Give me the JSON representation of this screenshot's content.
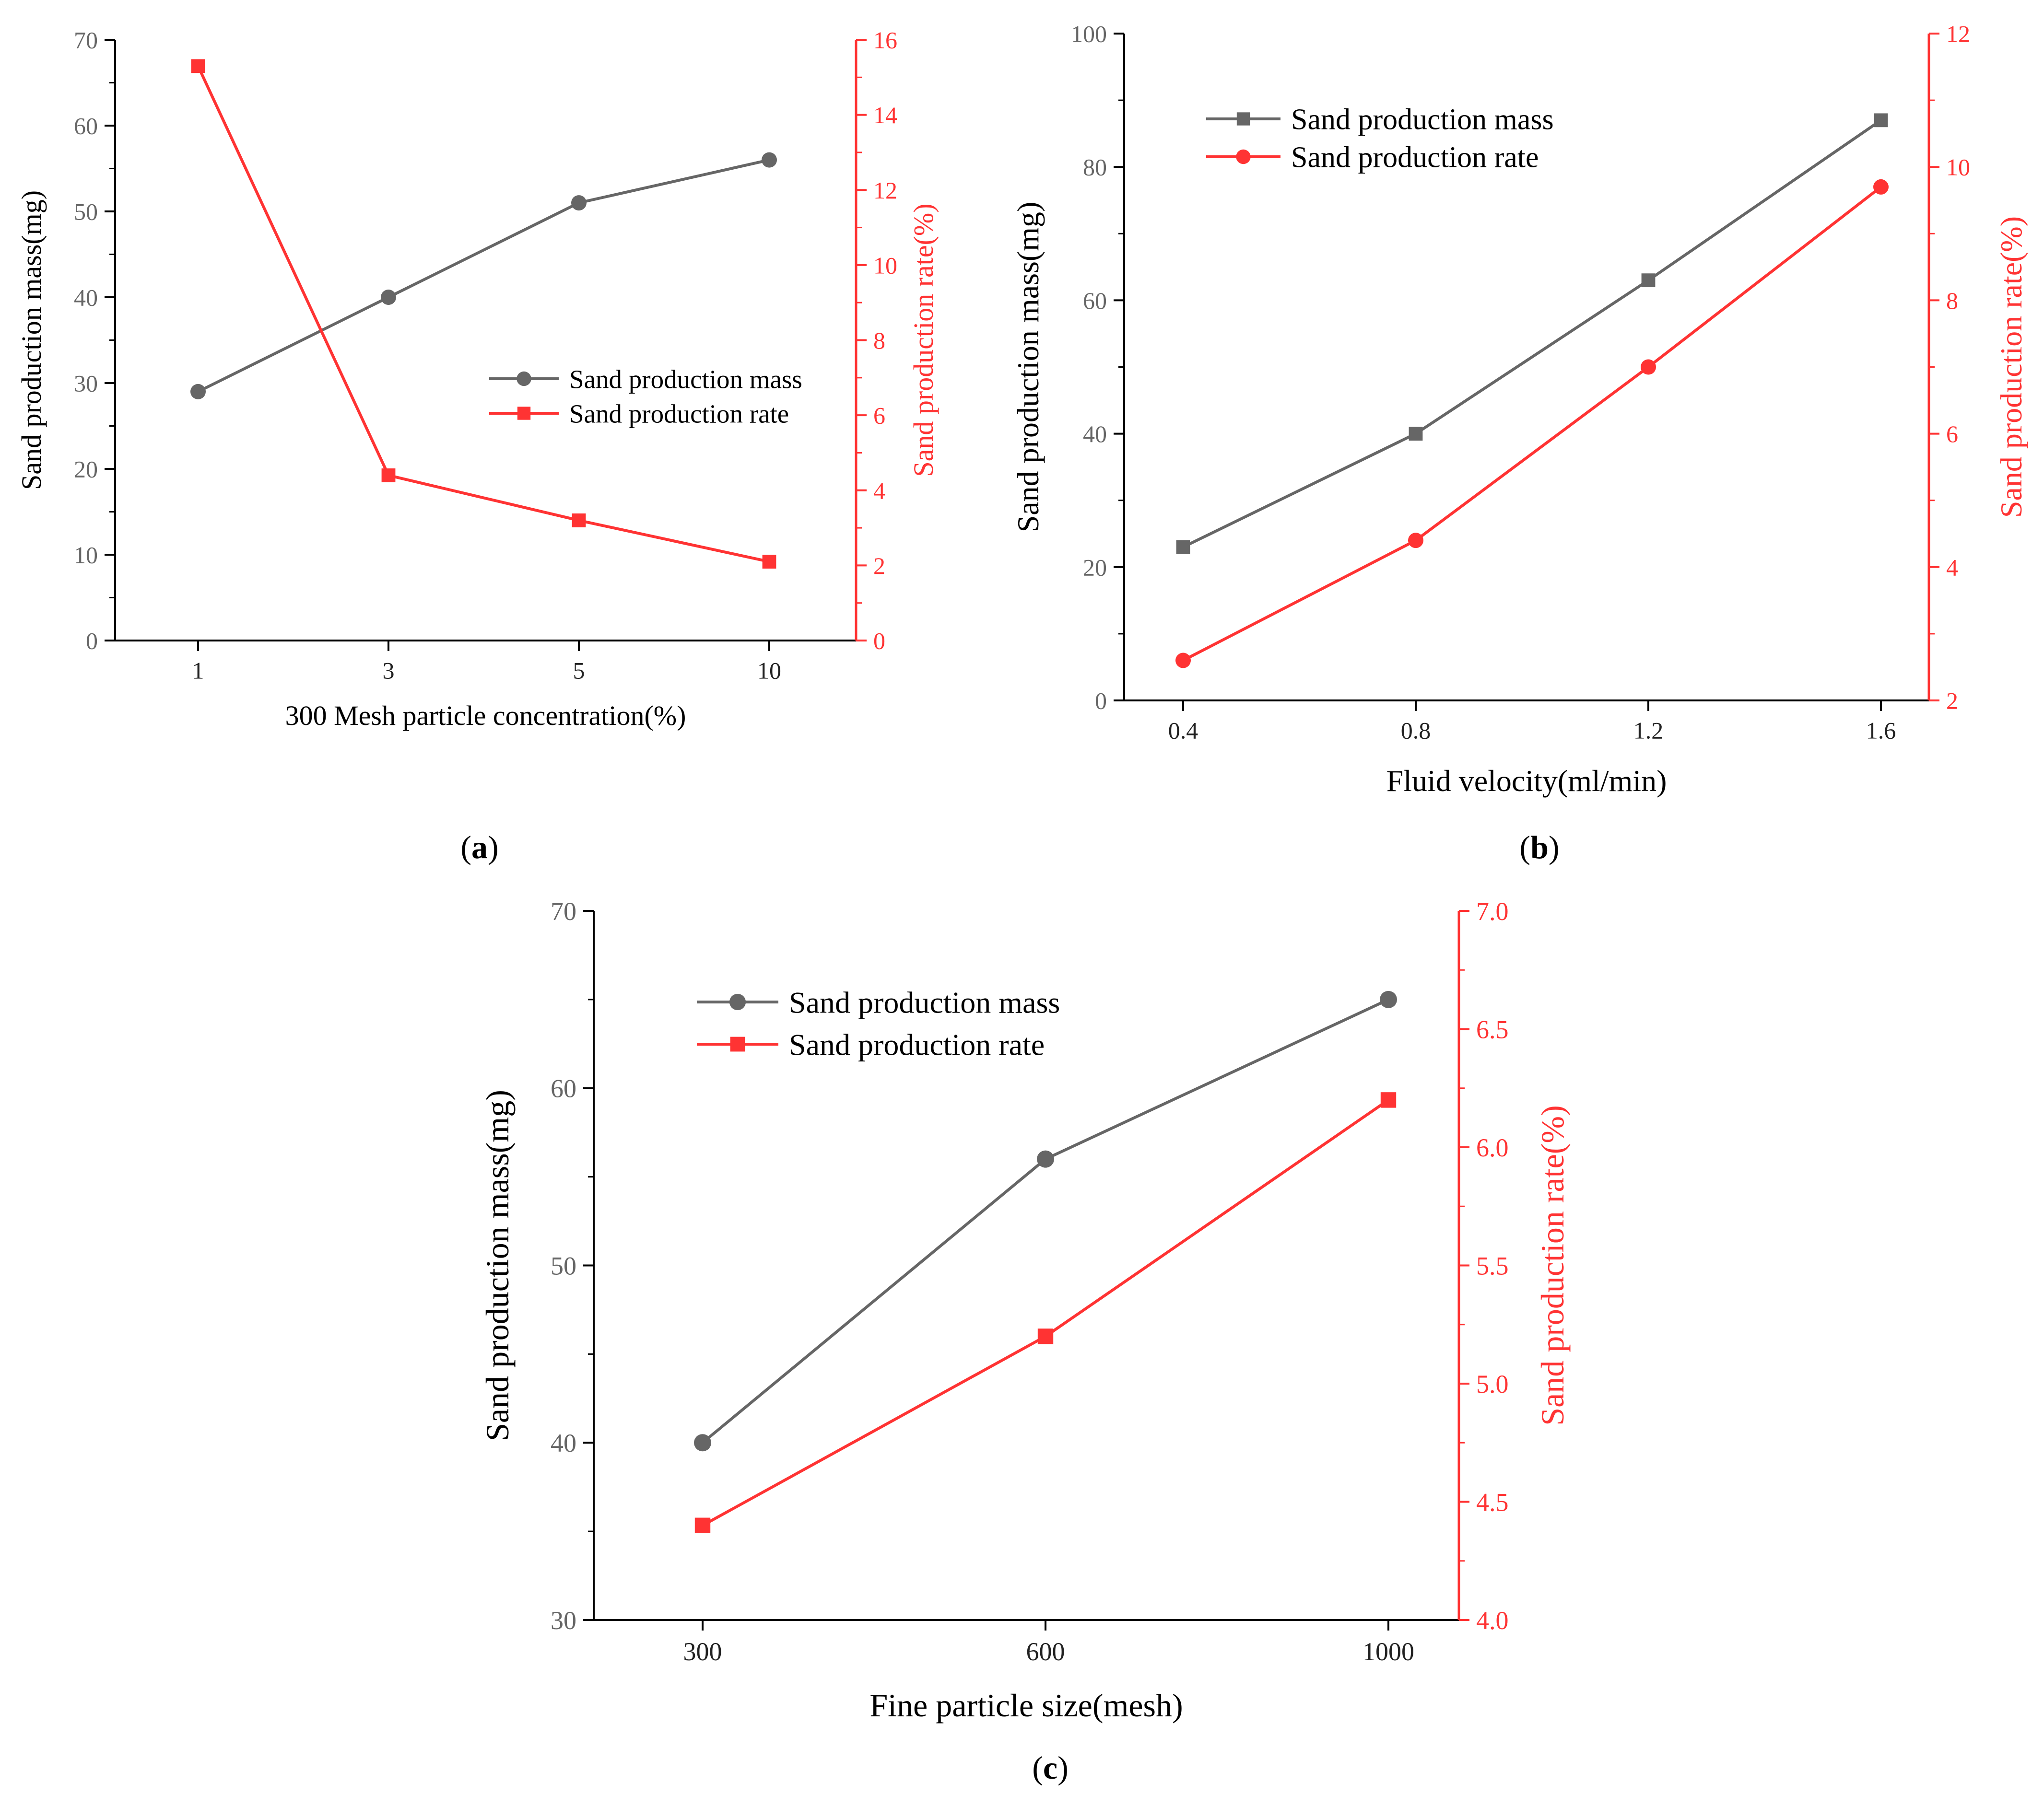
{
  "colors": {
    "mass": "#666666",
    "rate": "#ff3333",
    "axis": "#000000"
  },
  "chart_data": [
    {
      "id": "a",
      "panel_label": "a",
      "type": "line",
      "xlabel": "300 Mesh particle concentration(%)",
      "categories": [
        "1",
        "3",
        "5",
        "10"
      ],
      "y_left": {
        "label": "Sand production mass(mg)",
        "ylim": [
          0,
          70
        ],
        "ticks": [
          "0",
          "10",
          "20",
          "30",
          "40",
          "50",
          "60",
          "70"
        ]
      },
      "y_right": {
        "label": "Sand production rate(%)",
        "ylim": [
          0,
          16
        ],
        "ticks": [
          "0",
          "2",
          "4",
          "6",
          "8",
          "10",
          "12",
          "14",
          "16"
        ]
      },
      "series": [
        {
          "name": "Sand production mass",
          "axis": "left",
          "marker": "circle",
          "values": [
            29,
            40,
            51,
            56
          ]
        },
        {
          "name": "Sand production rate",
          "axis": "right",
          "marker": "square",
          "values": [
            15.3,
            4.4,
            3.2,
            2.1
          ]
        }
      ],
      "legend": "center-right",
      "grid": false
    },
    {
      "id": "b",
      "panel_label": "b",
      "type": "line",
      "xlabel": "Fluid velocity(ml/min)",
      "categories": [
        "0.4",
        "0.8",
        "1.2",
        "1.6"
      ],
      "y_left": {
        "label": "Sand production mass(mg)",
        "ylim": [
          0,
          100
        ],
        "ticks": [
          "0",
          "20",
          "40",
          "60",
          "80",
          "100"
        ]
      },
      "y_right": {
        "label": "Sand production rate(%)",
        "ylim": [
          2,
          12
        ],
        "ticks": [
          "2",
          "4",
          "6",
          "8",
          "10",
          "12"
        ]
      },
      "series": [
        {
          "name": "Sand production mass",
          "axis": "left",
          "marker": "square",
          "values": [
            23,
            40,
            63,
            87
          ]
        },
        {
          "name": "Sand production rate",
          "axis": "right",
          "marker": "circle",
          "values": [
            2.6,
            4.4,
            7.0,
            9.7
          ]
        }
      ],
      "legend": "top-left",
      "grid": false
    },
    {
      "id": "c",
      "panel_label": "c",
      "type": "line",
      "xlabel": "Fine particle size(mesh)",
      "categories": [
        "300",
        "600",
        "1000"
      ],
      "y_left": {
        "label": "Sand production mass(mg)",
        "ylim": [
          30,
          70
        ],
        "ticks": [
          "30",
          "40",
          "50",
          "60",
          "70"
        ]
      },
      "y_right": {
        "label": "Sand production rate(%)",
        "ylim": [
          4.0,
          7.0
        ],
        "ticks": [
          "4.0",
          "4.5",
          "5.0",
          "5.5",
          "6.0",
          "6.5",
          "7.0"
        ]
      },
      "series": [
        {
          "name": "Sand production mass",
          "axis": "left",
          "marker": "circle",
          "values": [
            40,
            56,
            65
          ]
        },
        {
          "name": "Sand production rate",
          "axis": "right",
          "marker": "square",
          "values": [
            4.4,
            5.2,
            6.2
          ]
        }
      ],
      "legend": "top-left",
      "grid": false
    }
  ]
}
